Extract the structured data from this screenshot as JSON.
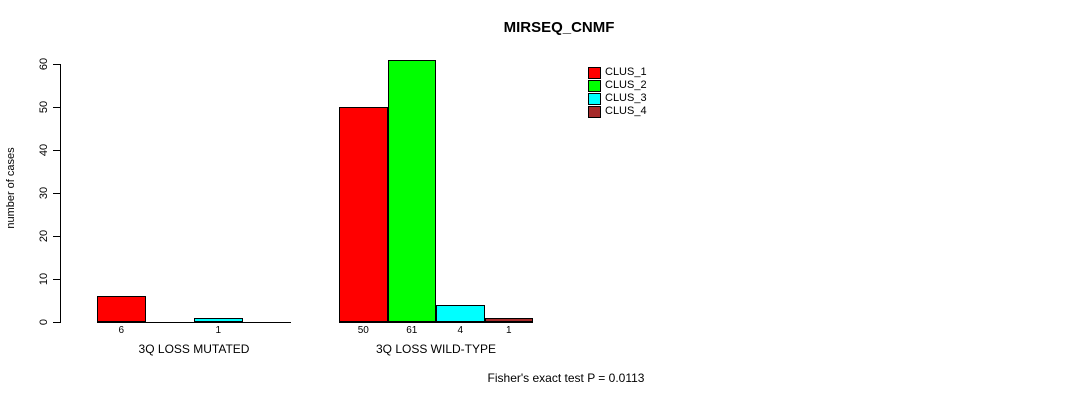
{
  "title": "MIRSEQ_CNMF",
  "y_axis": {
    "label": "number of cases",
    "tick_labels": [
      "0",
      "10",
      "20",
      "30",
      "40",
      "50",
      "60"
    ]
  },
  "legend": {
    "items": [
      {
        "label": "CLUS_1",
        "color": "#ff0000"
      },
      {
        "label": "CLUS_2",
        "color": "#00ff00"
      },
      {
        "label": "CLUS_3",
        "color": "#00ffff"
      },
      {
        "label": "CLUS_4",
        "color": "#a52a2a"
      }
    ]
  },
  "footer": {
    "note": "Fisher's exact test P = 0.0113"
  },
  "chart_data": {
    "type": "bar",
    "title": "MIRSEQ_CNMF",
    "categories": [
      "3Q LOSS MUTATED",
      "3Q LOSS WILD-TYPE"
    ],
    "series": [
      {
        "name": "CLUS_1",
        "color": "#ff0000",
        "values": [
          6,
          50
        ]
      },
      {
        "name": "CLUS_2",
        "color": "#00ff00",
        "values": [
          0,
          61
        ]
      },
      {
        "name": "CLUS_3",
        "color": "#00ffff",
        "values": [
          1,
          4
        ]
      },
      {
        "name": "CLUS_4",
        "color": "#a52a2a",
        "values": [
          0,
          1
        ]
      }
    ],
    "bar_value_labels": [
      [
        "6",
        "",
        "1",
        ""
      ],
      [
        "50",
        "61",
        "4",
        "1"
      ]
    ],
    "xlabel": "",
    "ylabel": "number of cases",
    "ylim": [
      0,
      60
    ],
    "yticks": [
      0,
      10,
      20,
      30,
      40,
      50,
      60
    ],
    "grid": false,
    "legend_position": "top-right",
    "annotation": "Fisher's exact test P = 0.0113"
  }
}
